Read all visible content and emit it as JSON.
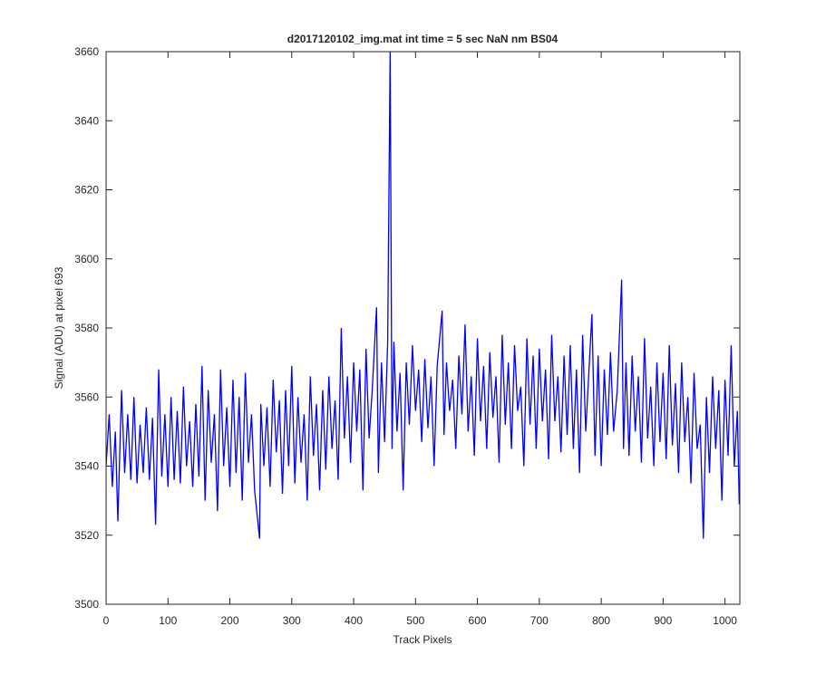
{
  "chart_data": {
    "type": "line",
    "title": "d2017120102_img.mat int time = 5 sec  NaN nm BS04",
    "xlabel": "Track Pixels",
    "ylabel": "Signal (ADU) at pixel 693",
    "xlim": [
      0,
      1024
    ],
    "ylim": [
      3500,
      3660
    ],
    "xticks": [
      0,
      100,
      200,
      300,
      400,
      500,
      600,
      700,
      800,
      900,
      1000
    ],
    "yticks": [
      3500,
      3520,
      3540,
      3560,
      3580,
      3600,
      3620,
      3640,
      3660
    ],
    "grid": false,
    "series": [
      {
        "color": "#0000ff",
        "x": [
          0,
          5,
          10,
          15,
          19,
          25,
          30,
          35,
          40,
          45,
          50,
          55,
          60,
          65,
          70,
          75,
          80,
          85,
          90,
          95,
          100,
          105,
          110,
          115,
          120,
          125,
          130,
          135,
          140,
          145,
          150,
          155,
          160,
          165,
          170,
          175,
          180,
          185,
          190,
          195,
          200,
          205,
          210,
          215,
          220,
          225,
          230,
          235,
          240,
          248,
          250,
          255,
          260,
          265,
          270,
          275,
          280,
          285,
          290,
          295,
          300,
          305,
          310,
          315,
          320,
          325,
          330,
          335,
          340,
          345,
          350,
          355,
          360,
          365,
          370,
          375,
          380,
          385,
          390,
          395,
          400,
          405,
          410,
          415,
          420,
          425,
          430,
          437,
          440,
          445,
          450,
          455,
          459,
          462,
          465,
          470,
          475,
          480,
          485,
          490,
          495,
          500,
          505,
          510,
          515,
          520,
          525,
          530,
          535,
          543,
          546,
          550,
          555,
          560,
          565,
          570,
          575,
          580,
          585,
          590,
          595,
          600,
          605,
          610,
          615,
          620,
          625,
          630,
          635,
          640,
          645,
          650,
          655,
          660,
          665,
          670,
          675,
          680,
          685,
          690,
          695,
          700,
          705,
          710,
          715,
          720,
          725,
          730,
          735,
          740,
          745,
          750,
          755,
          760,
          765,
          770,
          775,
          785,
          790,
          795,
          800,
          805,
          810,
          815,
          820,
          826,
          833,
          836,
          840,
          845,
          850,
          855,
          860,
          865,
          870,
          875,
          880,
          885,
          890,
          895,
          900,
          905,
          910,
          915,
          920,
          925,
          930,
          935,
          940,
          945,
          950,
          955,
          960,
          965,
          970,
          975,
          980,
          985,
          990,
          995,
          1000,
          1005,
          1010,
          1015,
          1020,
          1023
        ],
        "values": [
          3540,
          3555,
          3534,
          3550,
          3524,
          3562,
          3538,
          3555,
          3536,
          3560,
          3535,
          3552,
          3538,
          3557,
          3536,
          3554,
          3523,
          3568,
          3537,
          3555,
          3534,
          3560,
          3536,
          3556,
          3535,
          3563,
          3540,
          3553,
          3534,
          3558,
          3537,
          3569,
          3530,
          3562,
          3541,
          3555,
          3527,
          3568,
          3540,
          3557,
          3534,
          3565,
          3538,
          3560,
          3530,
          3567,
          3541,
          3555,
          3533,
          3519,
          3558,
          3540,
          3557,
          3534,
          3565,
          3544,
          3559,
          3532,
          3562,
          3540,
          3569,
          3535,
          3560,
          3541,
          3555,
          3530,
          3566,
          3543,
          3558,
          3533,
          3562,
          3539,
          3566,
          3545,
          3559,
          3536,
          3580,
          3548,
          3566,
          3541,
          3570,
          3550,
          3568,
          3533,
          3574,
          3548,
          3562,
          3586,
          3538,
          3570,
          3547,
          3576,
          3660,
          3545,
          3576,
          3550,
          3567,
          3533,
          3570,
          3552,
          3575,
          3556,
          3568,
          3547,
          3571,
          3551,
          3566,
          3540,
          3569,
          3585,
          3549,
          3570,
          3556,
          3565,
          3545,
          3572,
          3555,
          3581,
          3550,
          3566,
          3543,
          3577,
          3553,
          3569,
          3545,
          3573,
          3554,
          3566,
          3541,
          3578,
          3552,
          3570,
          3545,
          3575,
          3556,
          3563,
          3540,
          3577,
          3552,
          3572,
          3545,
          3574,
          3553,
          3568,
          3542,
          3578,
          3553,
          3566,
          3544,
          3572,
          3549,
          3575,
          3545,
          3568,
          3538,
          3578,
          3550,
          3584,
          3543,
          3572,
          3540,
          3568,
          3549,
          3573,
          3550,
          3562,
          3594,
          3545,
          3570,
          3543,
          3572,
          3550,
          3566,
          3541,
          3577,
          3548,
          3563,
          3540,
          3570,
          3547,
          3567,
          3542,
          3575,
          3546,
          3564,
          3538,
          3570,
          3547,
          3560,
          3535,
          3567,
          3545,
          3552,
          3519,
          3560,
          3538,
          3566,
          3545,
          3562,
          3530,
          3565,
          3543,
          3575,
          3540,
          3556,
          3529
        ]
      }
    ]
  }
}
